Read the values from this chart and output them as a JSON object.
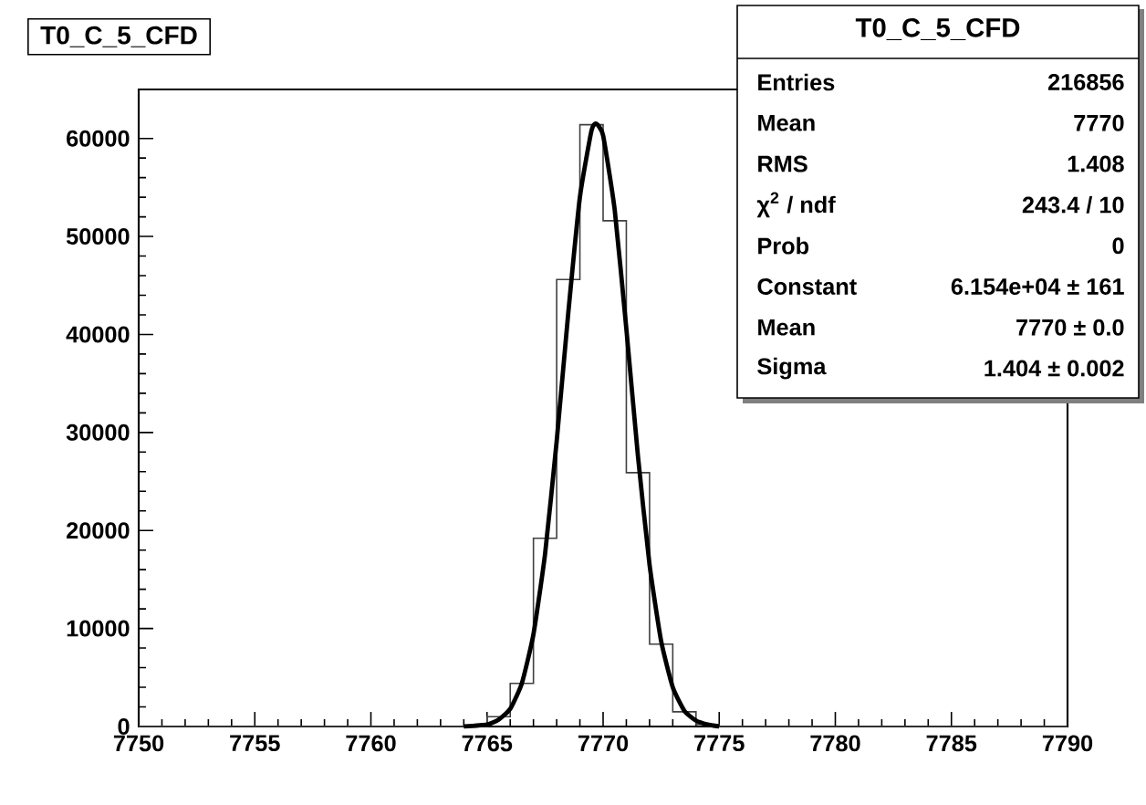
{
  "chart_data": {
    "type": "histogram",
    "title": "T0_C_5_CFD",
    "bins": [
      7750,
      7751,
      7752,
      7753,
      7754,
      7755,
      7756,
      7757,
      7758,
      7759,
      7760,
      7761,
      7762,
      7763,
      7764,
      7765,
      7766,
      7767,
      7768,
      7769,
      7770,
      7771,
      7772,
      7773,
      7774,
      7775,
      7776,
      7777,
      7778,
      7779,
      7780,
      7781,
      7782,
      7783,
      7784,
      7785,
      7786,
      7787,
      7788,
      7789,
      7790
    ],
    "values": [
      0,
      0,
      0,
      0,
      0,
      0,
      0,
      0,
      0,
      0,
      0,
      0,
      0,
      0,
      0,
      1000,
      4400,
      19200,
      45600,
      61400,
      51600,
      25900,
      8400,
      1500,
      200,
      0,
      0,
      0,
      0,
      0,
      0,
      0,
      0,
      0,
      0,
      0,
      0,
      0,
      0,
      0
    ],
    "color": "#404040",
    "series": [
      {
        "type": "line",
        "color": "#000000",
        "x": [
          7764,
          7765,
          7765.5,
          7766,
          7766.5,
          7767,
          7767.5,
          7768,
          7768.5,
          7769,
          7769.5,
          7769.7,
          7770,
          7770.5,
          7771,
          7771.5,
          7772,
          7772.5,
          7773,
          7773.5,
          7774,
          7774.5,
          7775
        ],
        "values": [
          0,
          200,
          700,
          1800,
          4400,
          9400,
          17600,
          29100,
          42200,
          54000,
          60800,
          61500,
          60300,
          52700,
          40600,
          27600,
          16500,
          8700,
          4000,
          1600,
          600,
          200,
          0
        ]
      }
    ],
    "xlim": [
      7750,
      7790
    ],
    "ylim": [
      0,
      65000
    ],
    "xticks": [
      7750,
      7755,
      7760,
      7765,
      7770,
      7775,
      7780,
      7785,
      7790
    ],
    "yticks": [
      0,
      10000,
      20000,
      30000,
      40000,
      50000,
      60000
    ],
    "grid": false,
    "annotations": [
      "T0_C_5_CFD",
      "Entries",
      "216856",
      "Mean",
      "7770",
      "RMS",
      "1.408",
      "χ$^{2}$ / ndf",
      "243.4 / 10",
      "Prob",
      "0",
      "Constant",
      "6.154e+04 ± 161",
      "Mean",
      "7770 ± 0.0",
      "Sigma",
      "1.404 ± 0.002"
    ]
  }
}
